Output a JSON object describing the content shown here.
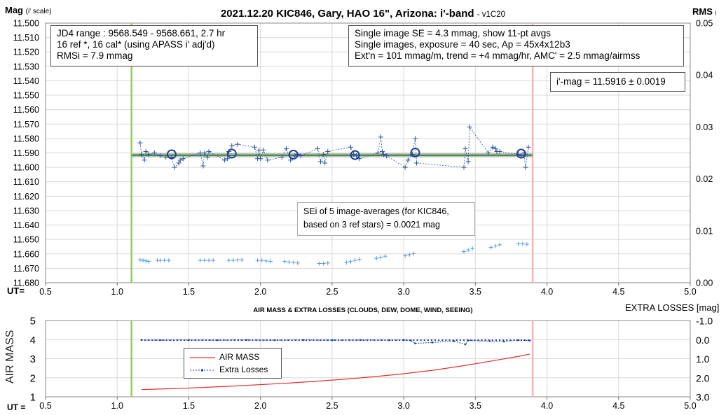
{
  "title": "2021.12.20 KIC846, Gary, HAO 16\", Arizona: i'-band",
  "version": "- v1C20",
  "top_chart": {
    "ylabel": "Mag",
    "ylabel_sub": "(i' scale)",
    "y2label": "RMS",
    "y2label_sub": "i",
    "xlabel": "UT=",
    "info_box": [
      "JD4 range : 9568.549 - 9568.661, 2.7  hr",
      "16 ref *, 16 cal* (using APASS i' adj'd)",
      "RMSi = 7.9 mmag"
    ],
    "single_box": [
      "Single image SE = 4.3 mmag, show 11-pt avgs",
      "Single images, exposure = 40 sec, Ap = 45x4x12b3",
      "Ext'n = 101 mmag/m, trend = +4 mmag/hr, AMC' = 2.5 mmag/airmss"
    ],
    "mag_box": "i'-mag = 11.5916 ± 0.0019",
    "sei_box": [
      "SEi of 5 image-averages (for KIC846,",
      "based on 3 ref stars) = 0.0021 mag"
    ]
  },
  "bottom_chart": {
    "title": "AIR MASS & EXTRA LOSSES (CLOUDS, DEW, DOME, WIND, SEEING)",
    "ylabel": "AIR MASS",
    "y2label": "EXTRA LOSSES [mag]",
    "xlabel": "UT =",
    "legend": [
      "AIR MASS",
      "Extra Losses"
    ]
  },
  "colors": {
    "gridline": "#d9d9d9",
    "data_points": "#2f5597",
    "averages": "#1f3f9f",
    "mean_line": "#3a8f3a",
    "mean_band": "#bfbfbf",
    "rms_points": "#5b9bd5",
    "start_line": "#92d050",
    "end_line": "#f4b6b6",
    "airmass": "#e03030",
    "extra_losses": "#1f3fa0"
  },
  "chart_data": [
    {
      "type": "scatter",
      "x_range": [
        0.5,
        5.0
      ],
      "x_ticks": [
        "0.5",
        "1.0",
        "1.5",
        "2.0",
        "2.5",
        "3.0",
        "3.5",
        "4.0",
        "4.5",
        "5.0"
      ],
      "y_range": [
        11.68,
        11.5
      ],
      "y_inverted": true,
      "y_ticks": [
        "11.500",
        "11.510",
        "11.520",
        "11.530",
        "11.540",
        "11.550",
        "11.560",
        "11.570",
        "11.580",
        "11.590",
        "11.600",
        "11.610",
        "11.620",
        "11.630",
        "11.640",
        "11.650",
        "11.660",
        "11.670",
        "11.680"
      ],
      "y2_range": [
        0.0,
        0.05
      ],
      "y2_ticks": [
        "0.00",
        "0.01",
        "0.02",
        "0.03",
        "0.04",
        "0.05"
      ],
      "grid": true,
      "series": [
        {
          "x": [
            1.16,
            1.17,
            1.19,
            1.2,
            1.22,
            1.26,
            1.3,
            1.34,
            1.38,
            1.4,
            1.43,
            1.44,
            1.46,
            1.58,
            1.6,
            1.61,
            1.63,
            1.64,
            1.75,
            1.77,
            1.78,
            1.8,
            1.84,
            1.96,
            1.98,
            1.99,
            2.0,
            2.02,
            2.05,
            2.15,
            2.18,
            2.21,
            2.24,
            2.26,
            2.28,
            2.4,
            2.42,
            2.44,
            2.45,
            2.47,
            2.63,
            2.65,
            2.67,
            2.69,
            2.82,
            2.84,
            2.85,
            2.86,
            2.88,
            3.01,
            3.03,
            3.06,
            3.08,
            3.09,
            3.42,
            3.43,
            3.45,
            3.46,
            3.59,
            3.62,
            3.64,
            3.65,
            3.67,
            3.8,
            3.82,
            3.84,
            3.85,
            3.87
          ],
          "y": [
            11.583,
            11.591,
            11.595,
            11.589,
            11.591,
            11.59,
            11.592,
            11.593,
            11.593,
            11.6,
            11.597,
            11.595,
            11.594,
            11.59,
            11.599,
            11.59,
            11.593,
            11.589,
            11.595,
            11.594,
            11.589,
            11.585,
            11.584,
            11.586,
            11.594,
            11.588,
            11.594,
            11.588,
            11.595,
            11.593,
            11.587,
            11.595,
            11.592,
            11.591,
            11.592,
            11.587,
            11.596,
            11.591,
            11.597,
            11.589,
            11.586,
            11.591,
            11.592,
            11.594,
            11.59,
            11.579,
            11.589,
            11.591,
            11.592,
            11.6,
            11.595,
            11.591,
            11.58,
            11.597,
            11.6,
            11.587,
            11.596,
            11.572,
            11.59,
            11.586,
            11.587,
            11.589,
            11.589,
            11.591,
            11.592,
            11.59,
            11.6,
            11.586
          ]
        },
        {
          "name": "averages",
          "x": [
            1.38,
            1.8,
            2.23,
            2.66,
            3.08,
            3.82
          ],
          "y": [
            11.591,
            11.5905,
            11.5912,
            11.5915,
            11.5898,
            11.5905
          ]
        },
        {
          "name": "mean",
          "x": [
            1.1,
            3.9
          ],
          "y": [
            11.5916,
            11.5916
          ]
        },
        {
          "name": "rms",
          "axis": "y2",
          "x": [
            1.16,
            1.18,
            1.2,
            1.22,
            1.28,
            1.3,
            1.33,
            1.36,
            1.58,
            1.61,
            1.64,
            1.67,
            1.78,
            1.81,
            1.84,
            1.87,
            1.98,
            2.01,
            2.04,
            2.07,
            2.17,
            2.2,
            2.23,
            2.26,
            2.41,
            2.44,
            2.47,
            2.6,
            2.63,
            2.66,
            2.69,
            2.81,
            2.84,
            2.87,
            3.01,
            3.04,
            3.07,
            3.42,
            3.45,
            3.48,
            3.61,
            3.64,
            3.67,
            3.8,
            3.83,
            3.86
          ],
          "y": [
            0.0044,
            0.0043,
            0.0042,
            0.0041,
            0.0043,
            0.0043,
            0.0043,
            0.0043,
            0.0043,
            0.0043,
            0.0043,
            0.0043,
            0.0043,
            0.0043,
            0.0044,
            0.0044,
            0.0043,
            0.0043,
            0.0042,
            0.0041,
            0.0041,
            0.004,
            0.0039,
            0.0038,
            0.0037,
            0.0037,
            0.0038,
            0.0039,
            0.0041,
            0.0043,
            0.0045,
            0.0047,
            0.0049,
            0.0051,
            0.0052,
            0.0054,
            0.0056,
            0.006,
            0.0063,
            0.0066,
            0.0068,
            0.0071,
            0.0073,
            0.0075,
            0.0075,
            0.0074
          ]
        }
      ],
      "vlines": [
        1.1,
        3.9
      ]
    },
    {
      "type": "line",
      "x_range": [
        0.5,
        5.0
      ],
      "x_ticks": [
        "0.5",
        "1.0",
        "1.5",
        "2.0",
        "2.5",
        "3.0",
        "3.5",
        "4.0",
        "4.5",
        "5.0"
      ],
      "y_range": [
        1,
        5
      ],
      "y_ticks": [
        "1",
        "2",
        "3",
        "4",
        "5"
      ],
      "y2_range": [
        3.0,
        -1.0
      ],
      "y2_ticks": [
        "-1.0",
        "0.0",
        "1.0",
        "2.0",
        "3.0"
      ],
      "grid": true,
      "legend_position": "center-left",
      "series": [
        {
          "name": "AIR MASS",
          "x": [
            1.17,
            1.4,
            1.6,
            1.8,
            2.0,
            2.2,
            2.4,
            2.6,
            2.8,
            3.0,
            3.2,
            3.4,
            3.6,
            3.8,
            3.88
          ],
          "y": [
            1.38,
            1.43,
            1.49,
            1.56,
            1.64,
            1.72,
            1.82,
            1.93,
            2.06,
            2.21,
            2.39,
            2.61,
            2.86,
            3.12,
            3.24
          ]
        },
        {
          "name": "Extra Losses",
          "axis": "y2",
          "x": [
            1.17,
            1.3,
            1.5,
            1.7,
            1.9,
            2.1,
            2.3,
            2.5,
            2.7,
            2.9,
            3.0,
            3.05,
            3.08,
            3.2,
            3.35,
            3.43,
            3.45,
            3.6,
            3.7,
            3.8,
            3.88
          ],
          "y": [
            0.02,
            0.03,
            0.02,
            0.03,
            0.02,
            0.03,
            0.02,
            0.03,
            0.02,
            0.03,
            0.02,
            0.05,
            0.2,
            0.15,
            0.08,
            0.25,
            0.05,
            0.08,
            0.1,
            0.03,
            0.05
          ]
        }
      ],
      "vlines": [
        1.1,
        3.9
      ]
    }
  ]
}
